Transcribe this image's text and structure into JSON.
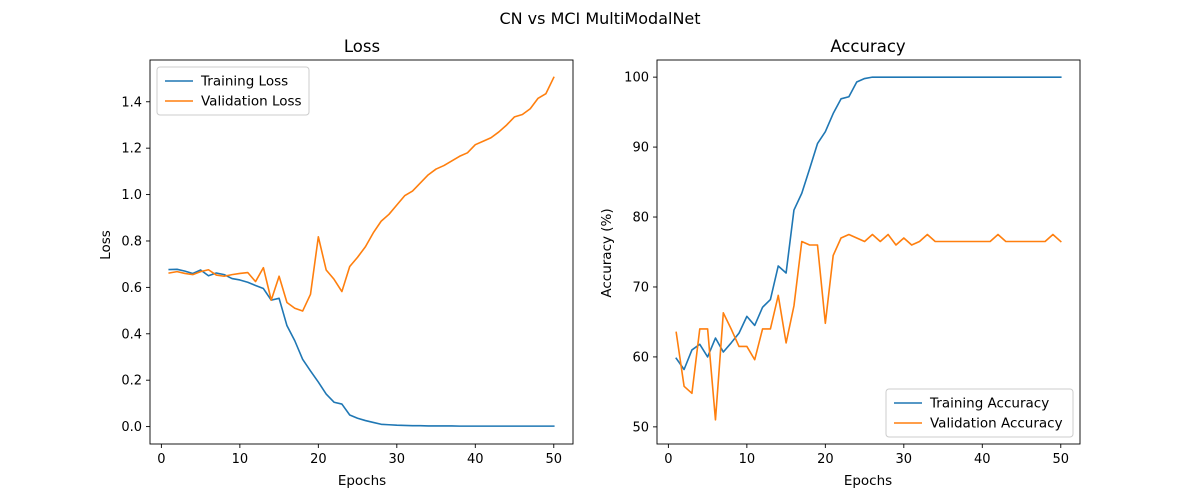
{
  "figure": {
    "suptitle": "CN vs MCI MultiModalNet"
  },
  "chart_data": [
    {
      "type": "line",
      "title": "Loss",
      "xlabel": "Epochs",
      "ylabel": "Loss",
      "xlim": [
        -1.45,
        52.45
      ],
      "ylim": [
        -0.075,
        1.58
      ],
      "xticks": [
        0,
        10,
        20,
        30,
        40,
        50
      ],
      "yticks": [
        0.0,
        0.2,
        0.4,
        0.6,
        0.8,
        1.0,
        1.2,
        1.4
      ],
      "ytick_labels": [
        "0.0",
        "0.2",
        "0.4",
        "0.6",
        "0.8",
        "1.0",
        "1.2",
        "1.4"
      ],
      "xtick_labels": [
        "0",
        "10",
        "20",
        "30",
        "40",
        "50"
      ],
      "legend_loc": "upper-left",
      "series": [
        {
          "name": "Training Loss",
          "color": "#1f77b4",
          "values": [
            0.677,
            0.678,
            0.67,
            0.66,
            0.675,
            0.65,
            0.662,
            0.655,
            0.638,
            0.632,
            0.622,
            0.608,
            0.595,
            0.545,
            0.553,
            0.435,
            0.37,
            0.29,
            0.24,
            0.192,
            0.14,
            0.105,
            0.097,
            0.05,
            0.036,
            0.026,
            0.018,
            0.01,
            0.008,
            0.006,
            0.005,
            0.004,
            0.004,
            0.003,
            0.003,
            0.003,
            0.003,
            0.002,
            0.002,
            0.002,
            0.002,
            0.002,
            0.002,
            0.002,
            0.002,
            0.002,
            0.002,
            0.002,
            0.002,
            0.002
          ]
        },
        {
          "name": "Validation Loss",
          "color": "#ff7f0e",
          "values": [
            0.662,
            0.668,
            0.66,
            0.655,
            0.668,
            0.676,
            0.653,
            0.648,
            0.655,
            0.66,
            0.664,
            0.625,
            0.685,
            0.545,
            0.648,
            0.535,
            0.51,
            0.498,
            0.57,
            0.818,
            0.675,
            0.635,
            0.582,
            0.69,
            0.73,
            0.775,
            0.835,
            0.885,
            0.915,
            0.955,
            0.995,
            1.015,
            1.05,
            1.085,
            1.11,
            1.125,
            1.145,
            1.165,
            1.18,
            1.215,
            1.23,
            1.245,
            1.27,
            1.3,
            1.335,
            1.345,
            1.37,
            1.415,
            1.435,
            1.505
          ]
        }
      ],
      "x": [
        1,
        2,
        3,
        4,
        5,
        6,
        7,
        8,
        9,
        10,
        11,
        12,
        13,
        14,
        15,
        16,
        17,
        18,
        19,
        20,
        21,
        22,
        23,
        24,
        25,
        26,
        27,
        28,
        29,
        30,
        31,
        32,
        33,
        34,
        35,
        36,
        37,
        38,
        39,
        40,
        41,
        42,
        43,
        44,
        45,
        46,
        47,
        48,
        49,
        50
      ]
    },
    {
      "type": "line",
      "title": "Accuracy",
      "xlabel": "Epochs",
      "ylabel": "Accuracy (%)",
      "xlim": [
        -1.45,
        52.45
      ],
      "ylim": [
        47.55,
        102.45
      ],
      "xticks": [
        0,
        10,
        20,
        30,
        40,
        50
      ],
      "yticks": [
        50,
        60,
        70,
        80,
        90,
        100
      ],
      "ytick_labels": [
        "50",
        "60",
        "70",
        "80",
        "90",
        "100"
      ],
      "xtick_labels": [
        "0",
        "10",
        "20",
        "30",
        "40",
        "50"
      ],
      "legend_loc": "lower-right",
      "series": [
        {
          "name": "Training Accuracy",
          "color": "#1f77b4",
          "values": [
            59.8,
            58.2,
            61.0,
            61.8,
            60.0,
            62.7,
            60.7,
            62.0,
            63.4,
            65.8,
            64.5,
            67.1,
            68.2,
            73.0,
            72.0,
            81.0,
            83.4,
            86.9,
            90.5,
            92.2,
            94.8,
            96.9,
            97.2,
            99.3,
            99.8,
            100,
            100,
            100,
            100,
            100,
            100,
            100,
            100,
            100,
            100,
            100,
            100,
            100,
            100,
            100,
            100,
            100,
            100,
            100,
            100,
            100,
            100,
            100,
            100,
            100
          ]
        },
        {
          "name": "Validation Accuracy",
          "color": "#ff7f0e",
          "values": [
            63.5,
            55.8,
            54.8,
            64.0,
            64.0,
            51.0,
            66.3,
            64.0,
            61.5,
            61.5,
            59.6,
            64.0,
            64.0,
            68.8,
            62.0,
            67.3,
            76.5,
            76.0,
            76.0,
            64.8,
            74.5,
            77.0,
            77.5,
            77.0,
            76.5,
            77.5,
            76.5,
            77.5,
            76.0,
            77.0,
            76.0,
            76.5,
            77.5,
            76.5,
            76.5,
            76.5,
            76.5,
            76.5,
            76.5,
            76.5,
            76.5,
            77.5,
            76.5,
            76.5,
            76.5,
            76.5,
            76.5,
            76.5,
            77.5,
            76.5
          ]
        }
      ],
      "x": [
        1,
        2,
        3,
        4,
        5,
        6,
        7,
        8,
        9,
        10,
        11,
        12,
        13,
        14,
        15,
        16,
        17,
        18,
        19,
        20,
        21,
        22,
        23,
        24,
        25,
        26,
        27,
        28,
        29,
        30,
        31,
        32,
        33,
        34,
        35,
        36,
        37,
        38,
        39,
        40,
        41,
        42,
        43,
        44,
        45,
        46,
        47,
        48,
        49,
        50
      ]
    }
  ]
}
